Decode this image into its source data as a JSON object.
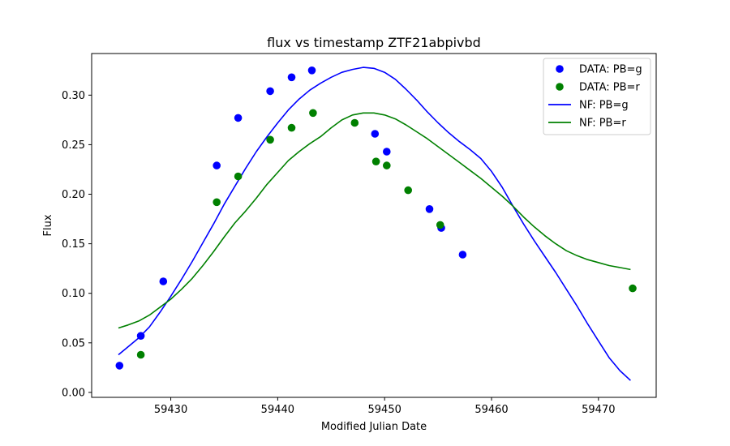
{
  "chart_data": {
    "type": "scatter",
    "title": "flux vs timestamp ZTF21abpivbd",
    "xlabel": "Modified Julian Date",
    "ylabel": "Flux",
    "xlim": [
      59422.6,
      59475.4
    ],
    "ylim": [
      -0.005,
      0.342
    ],
    "xticks": [
      59430,
      59440,
      59450,
      59460,
      59470
    ],
    "yticks": [
      0.0,
      0.05,
      0.1,
      0.15,
      0.2,
      0.25,
      0.3
    ],
    "grid": false,
    "legend_position": "upper right",
    "scatter_series": [
      {
        "name": "DATA: PB=g",
        "color": "#0000ff",
        "points": [
          [
            59425.2,
            0.027
          ],
          [
            59427.2,
            0.057
          ],
          [
            59429.3,
            0.112
          ],
          [
            59434.3,
            0.229
          ],
          [
            59436.3,
            0.277
          ],
          [
            59439.3,
            0.304
          ],
          [
            59441.3,
            0.318
          ],
          [
            59443.2,
            0.325
          ],
          [
            59449.1,
            0.261
          ],
          [
            59450.2,
            0.243
          ],
          [
            59454.2,
            0.185
          ],
          [
            59455.3,
            0.166
          ],
          [
            59457.3,
            0.139
          ]
        ]
      },
      {
        "name": "DATA: PB=r",
        "color": "#008000",
        "points": [
          [
            59427.2,
            0.038
          ],
          [
            59434.3,
            0.192
          ],
          [
            59436.3,
            0.218
          ],
          [
            59439.3,
            0.255
          ],
          [
            59441.3,
            0.267
          ],
          [
            59443.3,
            0.282
          ],
          [
            59447.2,
            0.272
          ],
          [
            59449.2,
            0.233
          ],
          [
            59450.2,
            0.229
          ],
          [
            59452.2,
            0.204
          ],
          [
            59455.2,
            0.169
          ],
          [
            59473.2,
            0.105
          ]
        ]
      }
    ],
    "line_series": [
      {
        "name": "NF: PB=g",
        "color": "#0000ff",
        "points": [
          [
            59425.1,
            0.038
          ],
          [
            59426.0,
            0.046
          ],
          [
            59427.0,
            0.055
          ],
          [
            59428.0,
            0.066
          ],
          [
            59429.0,
            0.081
          ],
          [
            59430.0,
            0.097
          ],
          [
            59431.0,
            0.114
          ],
          [
            59432.0,
            0.132
          ],
          [
            59433.0,
            0.151
          ],
          [
            59434.0,
            0.17
          ],
          [
            59435.0,
            0.19
          ],
          [
            59436.0,
            0.208
          ],
          [
            59437.0,
            0.226
          ],
          [
            59438.0,
            0.243
          ],
          [
            59439.0,
            0.258
          ],
          [
            59440.0,
            0.272
          ],
          [
            59441.0,
            0.285
          ],
          [
            59442.0,
            0.296
          ],
          [
            59443.0,
            0.305
          ],
          [
            59444.0,
            0.312
          ],
          [
            59445.0,
            0.318
          ],
          [
            59446.0,
            0.323
          ],
          [
            59447.0,
            0.326
          ],
          [
            59448.0,
            0.328
          ],
          [
            59449.0,
            0.327
          ],
          [
            59450.0,
            0.323
          ],
          [
            59451.0,
            0.316
          ],
          [
            59452.0,
            0.306
          ],
          [
            59453.0,
            0.295
          ],
          [
            59454.0,
            0.283
          ],
          [
            59455.0,
            0.272
          ],
          [
            59456.0,
            0.262
          ],
          [
            59457.0,
            0.253
          ],
          [
            59458.0,
            0.245
          ],
          [
            59459.0,
            0.236
          ],
          [
            59460.0,
            0.223
          ],
          [
            59461.0,
            0.207
          ],
          [
            59462.0,
            0.188
          ],
          [
            59463.0,
            0.17
          ],
          [
            59464.0,
            0.153
          ],
          [
            59465.0,
            0.137
          ],
          [
            59466.0,
            0.121
          ],
          [
            59467.0,
            0.104
          ],
          [
            59468.0,
            0.087
          ],
          [
            59469.0,
            0.069
          ],
          [
            59470.0,
            0.052
          ],
          [
            59471.0,
            0.035
          ],
          [
            59472.0,
            0.022
          ],
          [
            59473.0,
            0.012
          ]
        ]
      },
      {
        "name": "NF: PB=r",
        "color": "#008000",
        "points": [
          [
            59425.1,
            0.065
          ],
          [
            59426.0,
            0.068
          ],
          [
            59427.0,
            0.072
          ],
          [
            59428.0,
            0.078
          ],
          [
            59429.0,
            0.086
          ],
          [
            59430.0,
            0.094
          ],
          [
            59431.0,
            0.104
          ],
          [
            59432.0,
            0.115
          ],
          [
            59433.0,
            0.128
          ],
          [
            59434.0,
            0.142
          ],
          [
            59435.0,
            0.157
          ],
          [
            59436.0,
            0.171
          ],
          [
            59437.0,
            0.183
          ],
          [
            59438.0,
            0.196
          ],
          [
            59439.0,
            0.21
          ],
          [
            59440.0,
            0.222
          ],
          [
            59441.0,
            0.234
          ],
          [
            59442.0,
            0.243
          ],
          [
            59443.0,
            0.251
          ],
          [
            59444.0,
            0.258
          ],
          [
            59445.0,
            0.267
          ],
          [
            59446.0,
            0.275
          ],
          [
            59447.0,
            0.28
          ],
          [
            59448.0,
            0.282
          ],
          [
            59449.0,
            0.282
          ],
          [
            59450.0,
            0.28
          ],
          [
            59451.0,
            0.276
          ],
          [
            59452.0,
            0.27
          ],
          [
            59453.0,
            0.263
          ],
          [
            59454.0,
            0.256
          ],
          [
            59455.0,
            0.248
          ],
          [
            59456.0,
            0.24
          ],
          [
            59457.0,
            0.232
          ],
          [
            59458.0,
            0.224
          ],
          [
            59459.0,
            0.216
          ],
          [
            59460.0,
            0.207
          ],
          [
            59461.0,
            0.198
          ],
          [
            59462.0,
            0.188
          ],
          [
            59463.0,
            0.177
          ],
          [
            59464.0,
            0.167
          ],
          [
            59465.0,
            0.158
          ],
          [
            59466.0,
            0.15
          ],
          [
            59467.0,
            0.143
          ],
          [
            59468.0,
            0.138
          ],
          [
            59469.0,
            0.134
          ],
          [
            59470.0,
            0.131
          ],
          [
            59471.0,
            0.128
          ],
          [
            59472.0,
            0.126
          ],
          [
            59473.0,
            0.124
          ]
        ]
      }
    ],
    "legend": [
      {
        "label": "DATA: PB=g",
        "kind": "marker",
        "color": "#0000ff"
      },
      {
        "label": "DATA: PB=r",
        "kind": "marker",
        "color": "#008000"
      },
      {
        "label": "NF: PB=g",
        "kind": "line",
        "color": "#0000ff"
      },
      {
        "label": "NF: PB=r",
        "kind": "line",
        "color": "#008000"
      }
    ]
  }
}
